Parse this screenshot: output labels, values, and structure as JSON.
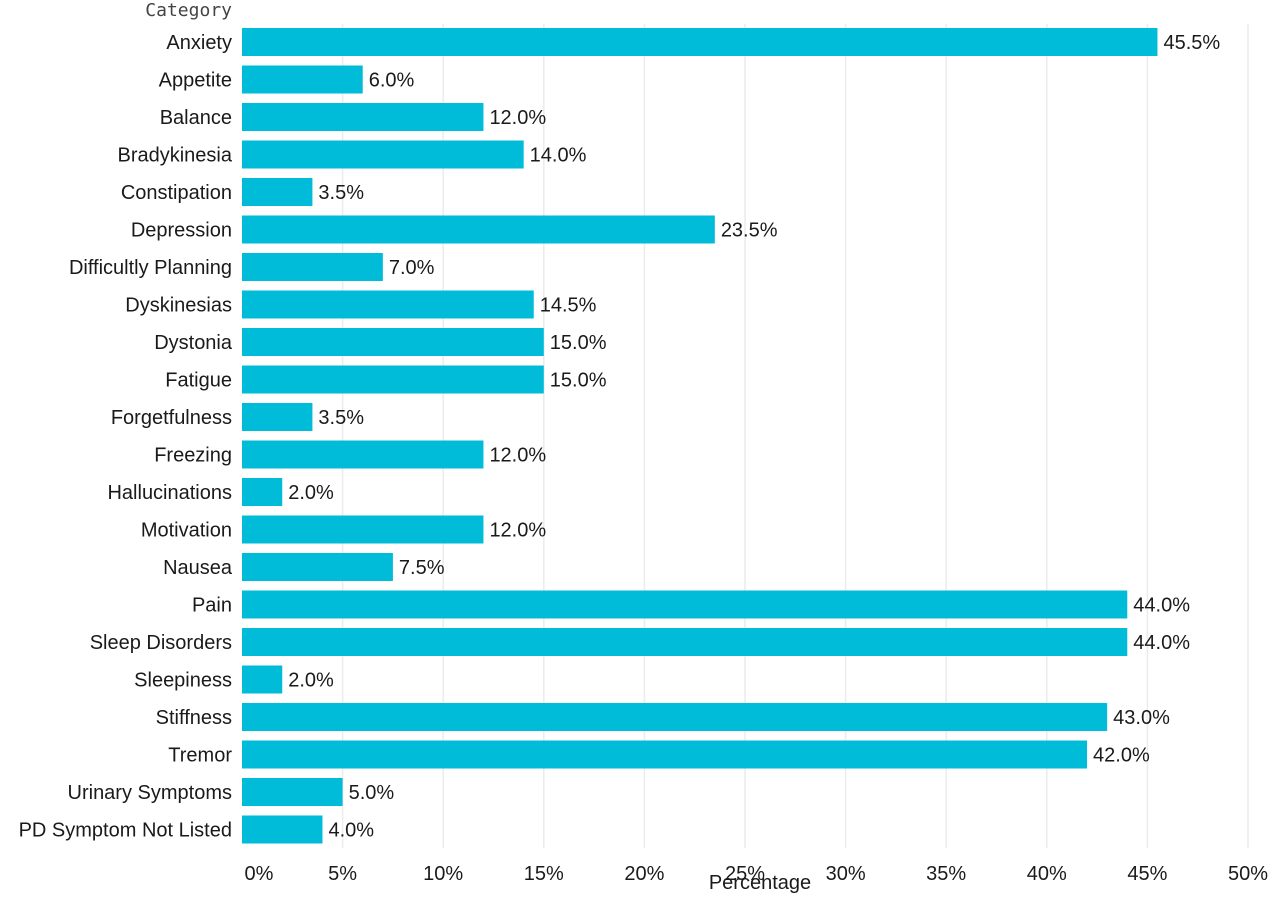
{
  "chart_data": {
    "type": "bar",
    "orientation": "horizontal",
    "category_axis_title": "Category",
    "xlabel": "Percentage",
    "xlim": [
      0,
      50
    ],
    "x_ticks": [
      "0%",
      "5%",
      "10%",
      "15%",
      "20%",
      "25%",
      "30%",
      "35%",
      "40%",
      "45%",
      "50%"
    ],
    "x_tick_values": [
      0,
      5,
      10,
      15,
      20,
      25,
      30,
      35,
      40,
      45,
      50
    ],
    "grid": "vertical",
    "bar_color": "#00BCD8",
    "categories": [
      "Anxiety",
      "Appetite",
      "Balance",
      "Bradykinesia",
      "Constipation",
      "Depression",
      "Difficultly Planning",
      "Dyskinesias",
      "Dystonia",
      "Fatigue",
      "Forgetfulness",
      "Freezing",
      "Hallucinations",
      "Motivation",
      "Nausea",
      "Pain",
      "Sleep Disorders",
      "Sleepiness",
      "Stiffness",
      "Tremor",
      "Urinary Symptoms",
      "PD Symptom Not Listed"
    ],
    "values": [
      45.5,
      6.0,
      12.0,
      14.0,
      3.5,
      23.5,
      7.0,
      14.5,
      15.0,
      15.0,
      3.5,
      12.0,
      2.0,
      12.0,
      7.5,
      44.0,
      44.0,
      2.0,
      43.0,
      42.0,
      5.0,
      4.0
    ],
    "value_labels": [
      "45.5%",
      "6.0%",
      "12.0%",
      "14.0%",
      "3.5%",
      "23.5%",
      "7.0%",
      "14.5%",
      "15.0%",
      "15.0%",
      "3.5%",
      "12.0%",
      "2.0%",
      "12.0%",
      "7.5%",
      "44.0%",
      "44.0%",
      "2.0%",
      "43.0%",
      "42.0%",
      "5.0%",
      "4.0%"
    ]
  }
}
